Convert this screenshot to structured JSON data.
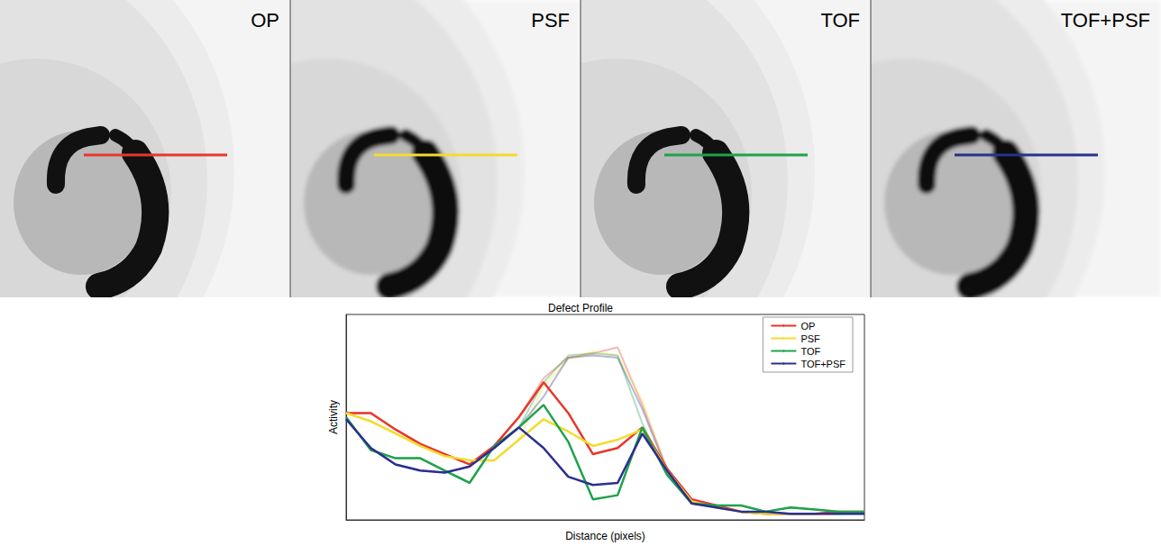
{
  "chart_data": {
    "type": "line",
    "title": "Defect Profile",
    "x_label": "Distance (pixels)",
    "y_label": "Activity",
    "x": [
      0,
      1,
      2,
      3,
      4,
      5,
      6,
      7,
      8,
      9,
      10,
      11,
      12,
      13,
      14,
      15,
      16,
      17,
      18,
      19,
      20,
      21
    ],
    "xlim": [
      0,
      21
    ],
    "ylim": [
      0,
      100
    ],
    "tick_labels": false,
    "grid": false,
    "legend": "upper right",
    "series": [
      {
        "name": "OP",
        "color": "#e8372b",
        "values": [
          52,
          52,
          44,
          37,
          32,
          27,
          36,
          50,
          67,
          52,
          32,
          35,
          45,
          25,
          10,
          7,
          4,
          3,
          3,
          3,
          4,
          4
        ],
        "reference_values": [
          52,
          52,
          44,
          37,
          32,
          27,
          36,
          50,
          69,
          79,
          81,
          84,
          56,
          25,
          10,
          7,
          4,
          3,
          3,
          3,
          4,
          4
        ]
      },
      {
        "name": "PSF",
        "color": "#f2dc2e",
        "values": [
          52,
          48,
          42,
          36,
          31,
          29,
          29,
          39,
          49,
          43,
          36,
          39,
          44,
          24,
          9,
          6,
          4,
          3,
          3,
          3,
          3,
          4
        ],
        "reference_values": [
          52,
          48,
          42,
          36,
          31,
          29,
          29,
          39,
          65,
          78,
          82,
          80,
          58,
          24,
          9,
          6,
          4,
          3,
          3,
          3,
          3,
          4
        ]
      },
      {
        "name": "TOF",
        "color": "#1fa24a",
        "values": [
          50,
          34,
          30,
          30,
          24,
          18,
          36,
          45,
          56,
          38,
          10,
          12,
          45,
          22,
          8,
          7,
          7,
          4,
          6,
          5,
          4,
          4
        ],
        "reference_values": [
          50,
          34,
          30,
          30,
          24,
          18,
          36,
          45,
          67,
          80,
          81,
          80,
          47,
          22,
          8,
          7,
          7,
          4,
          6,
          5,
          4,
          4
        ]
      },
      {
        "name": "TOF+PSF",
        "color": "#2b2f8f",
        "values": [
          49,
          35,
          27,
          24,
          23,
          26,
          35,
          45,
          35,
          21,
          17,
          18,
          42,
          24,
          8,
          6,
          4,
          4,
          3,
          3,
          3,
          3
        ],
        "reference_values": [
          49,
          35,
          27,
          24,
          23,
          26,
          35,
          45,
          60,
          79,
          80,
          79,
          54,
          24,
          8,
          6,
          4,
          4,
          3,
          3,
          3,
          3
        ]
      }
    ]
  }
}
